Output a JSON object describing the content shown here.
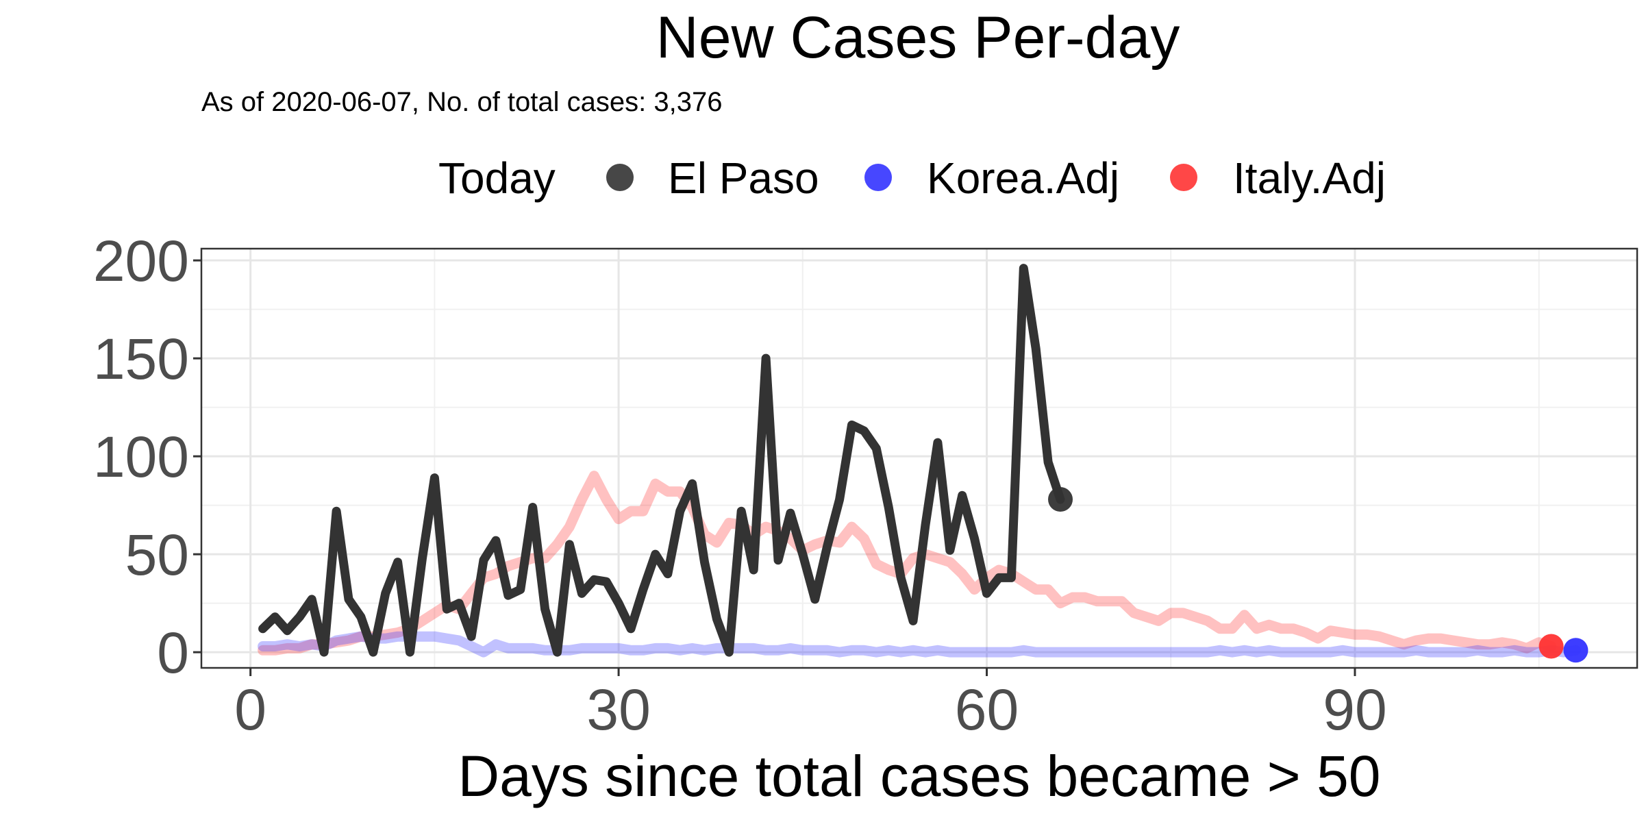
{
  "chart_data": {
    "type": "line",
    "title": "New Cases Per-day",
    "subtitle": "As of 2020-06-07, No. of total cases: 3,376",
    "xlabel": "Days since total cases became > 50",
    "ylabel": "",
    "xlim": [
      -4,
      113
    ],
    "ylim": [
      -8,
      206
    ],
    "x_ticks": [
      0,
      30,
      60,
      90
    ],
    "x_tick_labels": [
      "0",
      "30",
      "60",
      "90"
    ],
    "y_ticks": [
      0,
      50,
      100,
      150,
      200
    ],
    "y_tick_labels": [
      "0",
      "50",
      "100",
      "150",
      "200"
    ],
    "grid": true,
    "legend": {
      "title": "Today",
      "position": "top",
      "entries": [
        {
          "label": "El Paso",
          "color": "#333333"
        },
        {
          "label": "Korea.Adj",
          "color": "#3333ff"
        },
        {
          "label": "Italy.Adj",
          "color": "#ff3333"
        }
      ]
    },
    "series": [
      {
        "name": "Italy.Adj",
        "color": "#ff3333",
        "opacity": 0.3,
        "width": 15,
        "endpoint": [
          106,
          3
        ],
        "points": [
          [
            1,
            1
          ],
          [
            2,
            1
          ],
          [
            3,
            2
          ],
          [
            4,
            2
          ],
          [
            5,
            4
          ],
          [
            6,
            4
          ],
          [
            7,
            5
          ],
          [
            8,
            6
          ],
          [
            9,
            8
          ],
          [
            10,
            8
          ],
          [
            11,
            9
          ],
          [
            12,
            10
          ],
          [
            13,
            12
          ],
          [
            14,
            16
          ],
          [
            15,
            20
          ],
          [
            16,
            24
          ],
          [
            17,
            22
          ],
          [
            18,
            30
          ],
          [
            19,
            38
          ],
          [
            20,
            40
          ],
          [
            21,
            44
          ],
          [
            22,
            46
          ],
          [
            23,
            48
          ],
          [
            24,
            48
          ],
          [
            25,
            55
          ],
          [
            26,
            64
          ],
          [
            27,
            78
          ],
          [
            28,
            90
          ],
          [
            29,
            78
          ],
          [
            30,
            68
          ],
          [
            31,
            72
          ],
          [
            32,
            72
          ],
          [
            33,
            86
          ],
          [
            34,
            82
          ],
          [
            35,
            82
          ],
          [
            36,
            74
          ],
          [
            37,
            60
          ],
          [
            38,
            56
          ],
          [
            39,
            66
          ],
          [
            40,
            65
          ],
          [
            41,
            60
          ],
          [
            42,
            64
          ],
          [
            43,
            62
          ],
          [
            44,
            58
          ],
          [
            45,
            52
          ],
          [
            46,
            55
          ],
          [
            47,
            57
          ],
          [
            48,
            56
          ],
          [
            49,
            64
          ],
          [
            50,
            58
          ],
          [
            51,
            45
          ],
          [
            52,
            42
          ],
          [
            53,
            40
          ],
          [
            54,
            48
          ],
          [
            55,
            50
          ],
          [
            56,
            48
          ],
          [
            57,
            46
          ],
          [
            58,
            40
          ],
          [
            59,
            32
          ],
          [
            60,
            38
          ],
          [
            61,
            42
          ],
          [
            62,
            40
          ],
          [
            63,
            36
          ],
          [
            64,
            32
          ],
          [
            65,
            32
          ],
          [
            66,
            25
          ],
          [
            67,
            28
          ],
          [
            68,
            28
          ],
          [
            69,
            26
          ],
          [
            70,
            26
          ],
          [
            71,
            26
          ],
          [
            72,
            20
          ],
          [
            73,
            18
          ],
          [
            74,
            16
          ],
          [
            75,
            20
          ],
          [
            76,
            20
          ],
          [
            77,
            18
          ],
          [
            78,
            16
          ],
          [
            79,
            12
          ],
          [
            80,
            12
          ],
          [
            81,
            19
          ],
          [
            82,
            12
          ],
          [
            83,
            14
          ],
          [
            84,
            12
          ],
          [
            85,
            12
          ],
          [
            86,
            10
          ],
          [
            87,
            7
          ],
          [
            88,
            11
          ],
          [
            89,
            10
          ],
          [
            90,
            9
          ],
          [
            91,
            9
          ],
          [
            92,
            8
          ],
          [
            93,
            6
          ],
          [
            94,
            4
          ],
          [
            95,
            6
          ],
          [
            96,
            7
          ],
          [
            97,
            7
          ],
          [
            98,
            6
          ],
          [
            99,
            5
          ],
          [
            100,
            4
          ],
          [
            101,
            4
          ],
          [
            102,
            5
          ],
          [
            103,
            4
          ],
          [
            104,
            2
          ],
          [
            105,
            5
          ],
          [
            106,
            3
          ]
        ]
      },
      {
        "name": "Korea.Adj",
        "color": "#3333ff",
        "opacity": 0.3,
        "width": 15,
        "endpoint": [
          108,
          1
        ],
        "points": [
          [
            1,
            3
          ],
          [
            2,
            3
          ],
          [
            3,
            4
          ],
          [
            4,
            3
          ],
          [
            5,
            4
          ],
          [
            6,
            3
          ],
          [
            7,
            6
          ],
          [
            8,
            7
          ],
          [
            9,
            8
          ],
          [
            10,
            7
          ],
          [
            11,
            7
          ],
          [
            12,
            8
          ],
          [
            13,
            8
          ],
          [
            14,
            8
          ],
          [
            15,
            8
          ],
          [
            16,
            7
          ],
          [
            17,
            6
          ],
          [
            18,
            3
          ],
          [
            19,
            0
          ],
          [
            20,
            4
          ],
          [
            21,
            2
          ],
          [
            22,
            2
          ],
          [
            23,
            2
          ],
          [
            24,
            1
          ],
          [
            25,
            1
          ],
          [
            26,
            1
          ],
          [
            27,
            2
          ],
          [
            28,
            2
          ],
          [
            29,
            2
          ],
          [
            30,
            2
          ],
          [
            31,
            1
          ],
          [
            32,
            1
          ],
          [
            33,
            2
          ],
          [
            34,
            2
          ],
          [
            35,
            1
          ],
          [
            36,
            2
          ],
          [
            37,
            1
          ],
          [
            38,
            2
          ],
          [
            39,
            2
          ],
          [
            40,
            2
          ],
          [
            41,
            2
          ],
          [
            42,
            1
          ],
          [
            43,
            1
          ],
          [
            44,
            2
          ],
          [
            45,
            1
          ],
          [
            46,
            1
          ],
          [
            47,
            1
          ],
          [
            48,
            0
          ],
          [
            49,
            1
          ],
          [
            50,
            1
          ],
          [
            51,
            0
          ],
          [
            52,
            1
          ],
          [
            53,
            0
          ],
          [
            54,
            1
          ],
          [
            55,
            0
          ],
          [
            56,
            1
          ],
          [
            57,
            0
          ],
          [
            58,
            0
          ],
          [
            59,
            0
          ],
          [
            60,
            0
          ],
          [
            61,
            0
          ],
          [
            62,
            0
          ],
          [
            63,
            1
          ],
          [
            64,
            0
          ],
          [
            65,
            0
          ],
          [
            66,
            0
          ],
          [
            67,
            0
          ],
          [
            68,
            0
          ],
          [
            69,
            0
          ],
          [
            70,
            0
          ],
          [
            71,
            0
          ],
          [
            72,
            0
          ],
          [
            73,
            0
          ],
          [
            74,
            0
          ],
          [
            75,
            0
          ],
          [
            76,
            0
          ],
          [
            77,
            0
          ],
          [
            78,
            0
          ],
          [
            79,
            1
          ],
          [
            80,
            0
          ],
          [
            81,
            1
          ],
          [
            82,
            0
          ],
          [
            83,
            1
          ],
          [
            84,
            0
          ],
          [
            85,
            0
          ],
          [
            86,
            0
          ],
          [
            87,
            0
          ],
          [
            88,
            0
          ],
          [
            89,
            1
          ],
          [
            90,
            0
          ],
          [
            91,
            0
          ],
          [
            92,
            0
          ],
          [
            93,
            0
          ],
          [
            94,
            0
          ],
          [
            95,
            1
          ],
          [
            96,
            0
          ],
          [
            97,
            0
          ],
          [
            98,
            0
          ],
          [
            99,
            0
          ],
          [
            100,
            1
          ],
          [
            101,
            0
          ],
          [
            102,
            0
          ],
          [
            103,
            1
          ],
          [
            104,
            0
          ],
          [
            105,
            0
          ],
          [
            106,
            1
          ],
          [
            107,
            0
          ],
          [
            108,
            1
          ]
        ]
      },
      {
        "name": "El Paso",
        "color": "#333333",
        "opacity": 1,
        "width": 13,
        "endpoint": [
          66,
          78
        ],
        "points": [
          [
            1,
            12
          ],
          [
            2,
            18
          ],
          [
            3,
            11
          ],
          [
            4,
            18
          ],
          [
            5,
            27
          ],
          [
            6,
            0
          ],
          [
            7,
            72
          ],
          [
            8,
            27
          ],
          [
            9,
            18
          ],
          [
            10,
            0
          ],
          [
            11,
            30
          ],
          [
            12,
            46
          ],
          [
            13,
            0
          ],
          [
            14,
            48
          ],
          [
            15,
            89
          ],
          [
            16,
            22
          ],
          [
            17,
            25
          ],
          [
            18,
            8
          ],
          [
            19,
            47
          ],
          [
            20,
            57
          ],
          [
            21,
            29
          ],
          [
            22,
            32
          ],
          [
            23,
            74
          ],
          [
            24,
            22
          ],
          [
            25,
            0
          ],
          [
            26,
            55
          ],
          [
            27,
            30
          ],
          [
            28,
            37
          ],
          [
            29,
            36
          ],
          [
            30,
            25
          ],
          [
            31,
            12
          ],
          [
            32,
            32
          ],
          [
            33,
            50
          ],
          [
            34,
            40
          ],
          [
            35,
            72
          ],
          [
            36,
            86
          ],
          [
            37,
            46
          ],
          [
            38,
            17
          ],
          [
            39,
            0
          ],
          [
            40,
            72
          ],
          [
            41,
            42
          ],
          [
            42,
            150
          ],
          [
            43,
            47
          ],
          [
            44,
            71
          ],
          [
            45,
            50
          ],
          [
            46,
            27
          ],
          [
            47,
            54
          ],
          [
            48,
            78
          ],
          [
            49,
            116
          ],
          [
            50,
            113
          ],
          [
            51,
            104
          ],
          [
            52,
            74
          ],
          [
            53,
            38
          ],
          [
            54,
            16
          ],
          [
            55,
            65
          ],
          [
            56,
            107
          ],
          [
            57,
            52
          ],
          [
            58,
            80
          ],
          [
            59,
            58
          ],
          [
            60,
            30
          ],
          [
            61,
            38
          ],
          [
            62,
            38
          ],
          [
            63,
            196
          ],
          [
            64,
            155
          ],
          [
            65,
            97
          ],
          [
            66,
            78
          ]
        ]
      }
    ]
  }
}
